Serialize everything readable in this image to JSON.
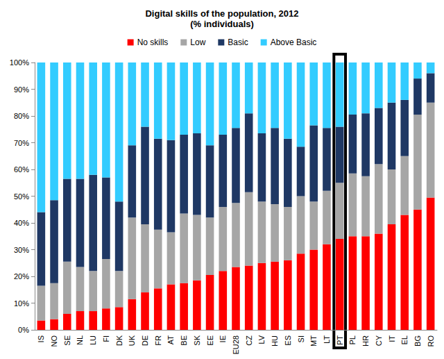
{
  "chart_data": {
    "type": "bar",
    "title": "Digital skills of the population, 2012",
    "subtitle": "(% individuals)",
    "categories": [
      "IS",
      "NO",
      "SE",
      "NL",
      "LU",
      "FI",
      "DK",
      "UK",
      "DE",
      "FR",
      "AT",
      "BE",
      "SK",
      "EE",
      "IE",
      "EU28",
      "CZ",
      "LV",
      "HU",
      "ES",
      "SI",
      "MT",
      "LT",
      "PT",
      "PL",
      "HR",
      "CY",
      "IT",
      "EL",
      "BG",
      "RO"
    ],
    "series": [
      {
        "name": "No skills",
        "color": "#ff0000",
        "values": [
          3.5,
          4,
          6,
          7,
          7,
          8,
          8.5,
          11.5,
          14,
          15.5,
          17,
          17.5,
          18.5,
          20.5,
          22,
          23.5,
          24,
          25,
          25.5,
          26,
          28.5,
          30,
          32,
          34,
          35,
          35,
          36,
          39.5,
          43,
          45,
          49.5
        ]
      },
      {
        "name": "Low",
        "color": "#a6a6a6",
        "values": [
          13,
          13.5,
          19.5,
          16.5,
          15,
          18.5,
          13.5,
          30.5,
          25.5,
          22,
          19.5,
          26,
          24.5,
          21.5,
          24,
          24,
          27.5,
          23,
          21.5,
          20,
          21.5,
          18,
          20,
          21,
          23.5,
          22.5,
          26,
          20.5,
          22,
          35.5,
          35.5
        ]
      },
      {
        "name": "Basic",
        "color": "#1f3864",
        "values": [
          27.5,
          31,
          31,
          33,
          36,
          30.5,
          26,
          27,
          36.5,
          34,
          34.5,
          29.5,
          30.5,
          27,
          27,
          28,
          29.5,
          25.5,
          28.5,
          25.5,
          18.5,
          28.5,
          23.5,
          21,
          22,
          23.5,
          21,
          25,
          21,
          13.5,
          11
        ]
      },
      {
        "name": "Above Basic",
        "color": "#33ccff",
        "values": [
          56,
          51.5,
          43.5,
          43.5,
          42,
          43,
          52,
          31,
          24,
          28.5,
          29,
          27,
          26.5,
          31,
          27,
          24.5,
          19,
          26.5,
          24.5,
          28.5,
          31.5,
          23.5,
          24.5,
          24,
          19.5,
          19,
          17,
          15,
          14,
          6,
          4
        ]
      }
    ],
    "ylim": [
      0,
      100
    ],
    "yticks": [
      {
        "value": 0,
        "label": "0%"
      },
      {
        "value": 10,
        "label": "10%"
      },
      {
        "value": 20,
        "label": "20%"
      },
      {
        "value": 30,
        "label": "30%"
      },
      {
        "value": 40,
        "label": "40%"
      },
      {
        "value": 50,
        "label": "50%"
      },
      {
        "value": 60,
        "label": "60%"
      },
      {
        "value": 70,
        "label": "70%"
      },
      {
        "value": 80,
        "label": "80%"
      },
      {
        "value": 90,
        "label": "90%"
      },
      {
        "value": 100,
        "label": "100%"
      }
    ],
    "stacked": true,
    "grid": false,
    "legend": "top"
  }
}
